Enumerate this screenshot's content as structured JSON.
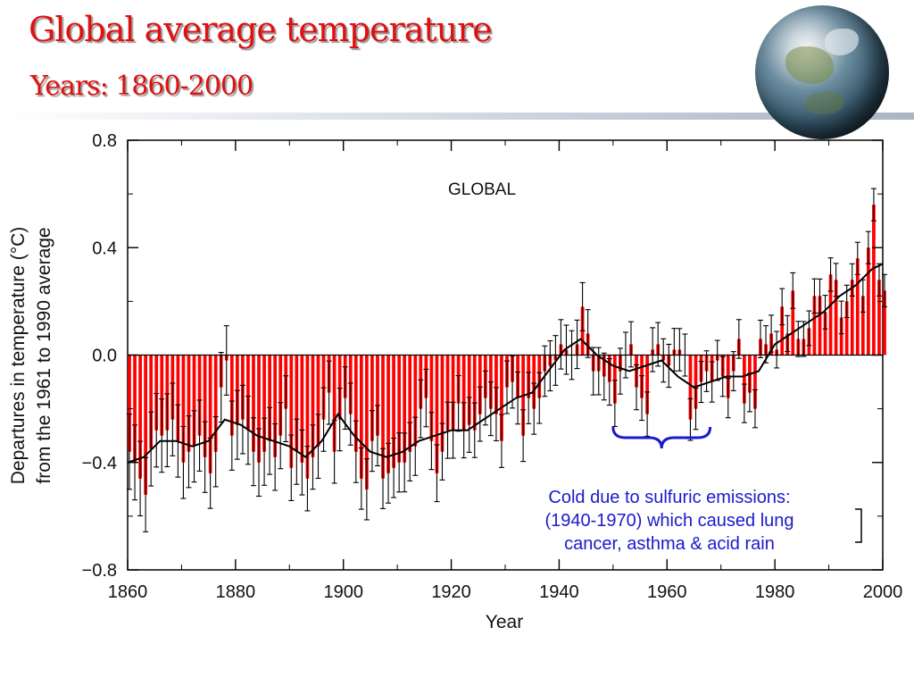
{
  "header": {
    "title": "Global average temperature",
    "subtitle": "Years: 1860-2000"
  },
  "chart_data": {
    "type": "bar",
    "title": "GLOBAL",
    "xlabel": "Year",
    "ylabel": "Departures in temperature (°C)",
    "ylabel2": "from the 1961 to 1990 average",
    "xlim": [
      1860,
      2000
    ],
    "ylim": [
      -0.8,
      0.8
    ],
    "xticks": [
      1860,
      1880,
      1900,
      1920,
      1940,
      1960,
      1980,
      2000
    ],
    "yticks": [
      {
        "value": 0.8,
        "label": "0.8"
      },
      {
        "value": 0.4,
        "label": "0.4"
      },
      {
        "value": 0.0,
        "label": "0.0"
      },
      {
        "value": -0.4,
        "label": "−0.4"
      },
      {
        "value": -0.8,
        "label": "−0.8"
      }
    ],
    "grid": false,
    "bar_color": "#ff0000",
    "line_color": "#000000",
    "series": [
      {
        "x": [
          1860,
          1861,
          1862,
          1863,
          1864,
          1865,
          1866,
          1867,
          1868,
          1869,
          1870,
          1871,
          1872,
          1873,
          1874,
          1875,
          1876,
          1877,
          1878,
          1879,
          1880,
          1881,
          1882,
          1883,
          1884,
          1885,
          1886,
          1887,
          1888,
          1889,
          1890,
          1891,
          1892,
          1893,
          1894,
          1895,
          1896,
          1897,
          1898,
          1899,
          1900,
          1901,
          1902,
          1903,
          1904,
          1905,
          1906,
          1907,
          1908,
          1909,
          1910,
          1911,
          1912,
          1913,
          1914,
          1915,
          1916,
          1917,
          1918,
          1919,
          1920,
          1921,
          1922,
          1923,
          1924,
          1925,
          1926,
          1927,
          1928,
          1929,
          1930,
          1931,
          1932,
          1933,
          1934,
          1935,
          1936,
          1937,
          1938,
          1939,
          1940,
          1941,
          1942,
          1943,
          1944,
          1945,
          1946,
          1947,
          1948,
          1949,
          1950,
          1951,
          1952,
          1953,
          1954,
          1955,
          1956,
          1957,
          1958,
          1959,
          1960,
          1961,
          1962,
          1963,
          1964,
          1965,
          1966,
          1967,
          1968,
          1969,
          1970,
          1971,
          1972,
          1973,
          1974,
          1975,
          1976,
          1977,
          1978,
          1979,
          1980,
          1981,
          1982,
          1983,
          1984,
          1985,
          1986,
          1987,
          1988,
          1989,
          1990,
          1991,
          1992,
          1993,
          1994,
          1995,
          1996,
          1997,
          1998,
          1999,
          2000
        ],
        "values": [
          -0.36,
          -0.4,
          -0.46,
          -0.52,
          -0.35,
          -0.28,
          -0.3,
          -0.28,
          -0.24,
          -0.32,
          -0.4,
          -0.36,
          -0.34,
          -0.3,
          -0.38,
          -0.44,
          -0.36,
          -0.12,
          -0.02,
          -0.3,
          -0.26,
          -0.24,
          -0.28,
          -0.36,
          -0.4,
          -0.36,
          -0.32,
          -0.38,
          -0.3,
          -0.2,
          -0.42,
          -0.36,
          -0.4,
          -0.46,
          -0.38,
          -0.34,
          -0.24,
          -0.14,
          -0.36,
          -0.24,
          -0.16,
          -0.22,
          -0.36,
          -0.46,
          -0.5,
          -0.32,
          -0.3,
          -0.46,
          -0.44,
          -0.42,
          -0.4,
          -0.4,
          -0.36,
          -0.34,
          -0.2,
          -0.16,
          -0.32,
          -0.44,
          -0.36,
          -0.28,
          -0.28,
          -0.18,
          -0.28,
          -0.26,
          -0.28,
          -0.22,
          -0.16,
          -0.2,
          -0.22,
          -0.32,
          -0.12,
          -0.1,
          -0.16,
          -0.3,
          -0.16,
          -0.2,
          -0.16,
          -0.06,
          -0.04,
          -0.02,
          0.04,
          0.02,
          0.0,
          0.04,
          0.18,
          0.08,
          -0.06,
          -0.06,
          -0.08,
          -0.1,
          -0.18,
          -0.06,
          0.0,
          0.04,
          -0.12,
          -0.16,
          -0.22,
          0.02,
          0.04,
          -0.02,
          -0.04,
          0.02,
          0.02,
          0.0,
          -0.24,
          -0.2,
          -0.1,
          -0.06,
          -0.1,
          -0.02,
          -0.08,
          -0.16,
          -0.06,
          0.06,
          -0.18,
          -0.14,
          -0.2,
          0.06,
          0.04,
          0.08,
          0.02,
          0.18,
          0.08,
          0.24,
          0.06,
          0.06,
          0.1,
          0.22,
          0.22,
          0.16,
          0.3,
          0.28,
          0.14,
          0.2,
          0.28,
          0.36,
          0.22,
          0.4,
          0.56,
          0.28,
          0.24
        ]
      },
      {
        "name": "smoothed",
        "x": [
          1860,
          1863,
          1866,
          1869,
          1872,
          1875,
          1878,
          1881,
          1884,
          1887,
          1890,
          1893,
          1896,
          1899,
          1902,
          1905,
          1908,
          1911,
          1914,
          1917,
          1920,
          1923,
          1926,
          1929,
          1932,
          1935,
          1938,
          1941,
          1944,
          1947,
          1950,
          1953,
          1956,
          1959,
          1962,
          1965,
          1968,
          1971,
          1974,
          1977,
          1980,
          1983,
          1986,
          1989,
          1992,
          1995,
          1998,
          2000
        ],
        "values": [
          -0.4,
          -0.38,
          -0.32,
          -0.32,
          -0.34,
          -0.32,
          -0.24,
          -0.26,
          -0.3,
          -0.32,
          -0.34,
          -0.38,
          -0.32,
          -0.22,
          -0.3,
          -0.36,
          -0.38,
          -0.36,
          -0.32,
          -0.3,
          -0.28,
          -0.28,
          -0.24,
          -0.2,
          -0.16,
          -0.14,
          -0.06,
          0.02,
          0.06,
          0.0,
          -0.04,
          -0.06,
          -0.04,
          -0.02,
          -0.08,
          -0.12,
          -0.1,
          -0.08,
          -0.08,
          -0.06,
          0.04,
          0.08,
          0.12,
          0.16,
          0.22,
          0.26,
          0.32,
          0.34
        ]
      }
    ]
  },
  "annotation": {
    "lines": [
      "Cold due to sulfuric emissions:",
      "(1940-1970) which caused lung",
      "cancer, asthma & acid rain"
    ],
    "range": [
      1950,
      1968
    ],
    "color": "#1a1acc"
  }
}
